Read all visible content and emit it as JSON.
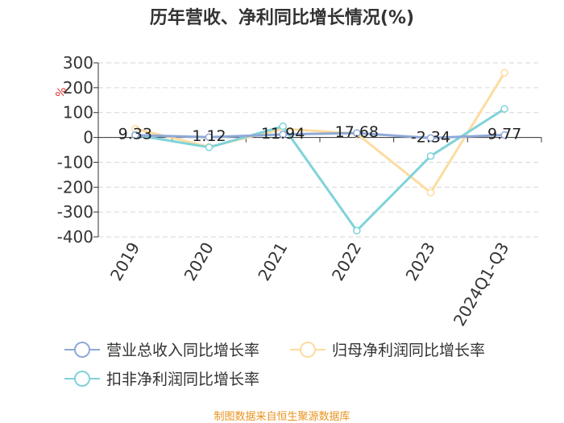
{
  "chart_data": {
    "type": "line",
    "title": "历年营收、净利同比增长情况(%)",
    "ylabel": "%",
    "xlabel": "",
    "categories": [
      "2019",
      "2020",
      "2021",
      "2022",
      "2023",
      "2024Q1-Q3"
    ],
    "ylim": [
      -400,
      300
    ],
    "yticks": [
      300,
      200,
      100,
      0,
      -100,
      -200,
      -300,
      -400
    ],
    "grid": true,
    "legend_position": "bottom",
    "series": [
      {
        "name": "营业总收入同比增长率",
        "color": "#8fa9d8",
        "values": [
          9.33,
          1.12,
          11.94,
          17.68,
          -2.34,
          9.77
        ],
        "labels": [
          "9.33",
          "1.12",
          "11.94",
          "17.68",
          "-2.34",
          "9.77"
        ]
      },
      {
        "name": "归母净利润同比增长率",
        "color": "#fcdca0",
        "values": [
          35,
          -38,
          35,
          15,
          -222,
          260
        ]
      },
      {
        "name": "扣非净利润同比增长率",
        "color": "#7fd3d9",
        "values": [
          10,
          -40,
          45,
          -375,
          -75,
          115
        ]
      }
    ]
  },
  "source": "制图数据来自恒生聚源数据库"
}
